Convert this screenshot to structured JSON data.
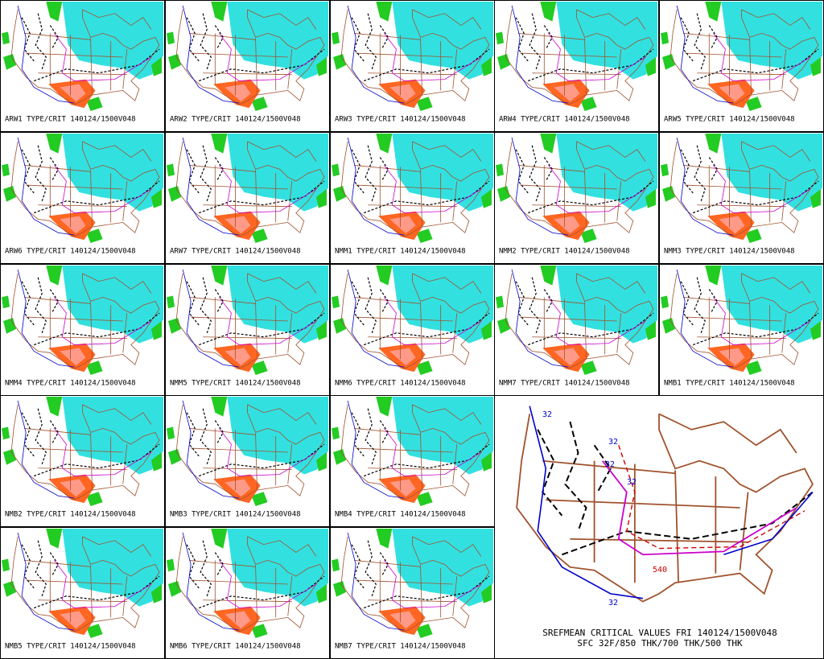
{
  "panels": [
    {
      "label": "ARW1 TYPE/CRIT 140124/1500V048"
    },
    {
      "label": "ARW2 TYPE/CRIT 140124/1500V048"
    },
    {
      "label": "ARW3 TYPE/CRIT 140124/1500V048"
    },
    {
      "label": "ARW4 TYPE/CRIT 140124/1500V048"
    },
    {
      "label": "ARW5 TYPE/CRIT 140124/1500V048"
    },
    {
      "label": "ARW6 TYPE/CRIT 140124/1500V048"
    },
    {
      "label": "ARW7 TYPE/CRIT 140124/1500V048"
    },
    {
      "label": "NMM1 TYPE/CRIT 140124/1500V048"
    },
    {
      "label": "NMM2 TYPE/CRIT 140124/1500V048"
    },
    {
      "label": "NMM3 TYPE/CRIT 140124/1500V048"
    },
    {
      "label": "NMM4 TYPE/CRIT 140124/1500V048"
    },
    {
      "label": "NMM5 TYPE/CRIT 140124/1500V048"
    },
    {
      "label": "NMM6 TYPE/CRIT 140124/1500V048"
    },
    {
      "label": "NMM7 TYPE/CRIT 140124/1500V048"
    },
    {
      "label": "NMB1 TYPE/CRIT 140124/1500V048"
    },
    {
      "label": "NMB2 TYPE/CRIT 140124/1500V048"
    },
    {
      "label": "NMB3 TYPE/CRIT 140124/1500V048"
    },
    {
      "label": "NMB4 TYPE/CRIT 140124/1500V048"
    },
    {
      "label": "NMB5 TYPE/CRIT 140124/1500V048"
    },
    {
      "label": "NMB6 TYPE/CRIT 140124/1500V048"
    },
    {
      "label": "NMB7 TYPE/CRIT 140124/1500V048"
    }
  ],
  "summary": {
    "title": "SREFMEAN CRITICAL VALUES FRI 140124/1500V048",
    "subtitle": "SFC 32F/850 THK/700 THK/500 THK",
    "contour_labels": [
      "32",
      "32",
      "32",
      "32",
      "540",
      "32"
    ]
  }
}
